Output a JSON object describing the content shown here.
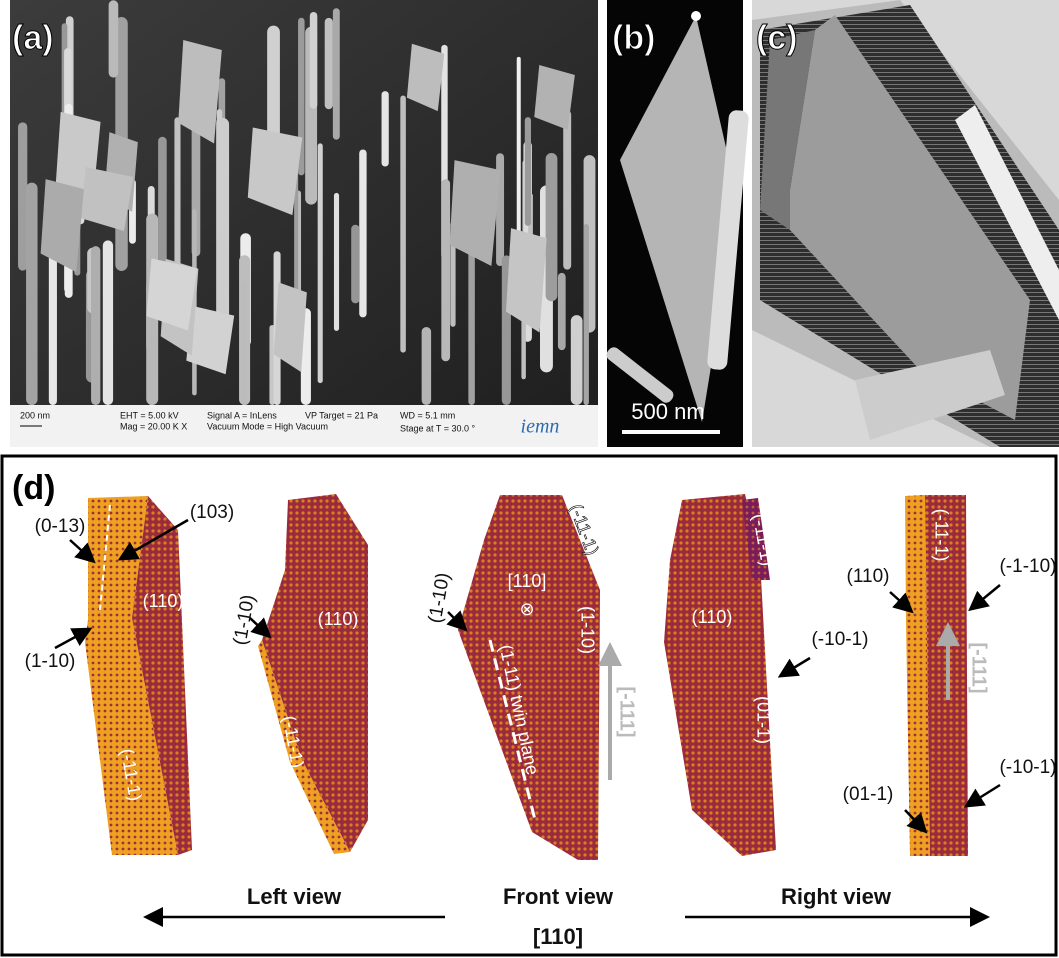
{
  "panels": {
    "a": {
      "label": "(a)",
      "scale_bar": "200 nm",
      "info": [
        "EHT = 5.00 kV",
        "Mag = 20.00 K X",
        "Signal A = InLens",
        "Vacuum Mode = High Vacuum",
        "VP Target = 21 Pa",
        "WD = 5.1 mm",
        "Stage at T = 30.0 °"
      ],
      "logo": "iemn"
    },
    "b": {
      "label": "(b)",
      "scale_bar": "500 nm"
    },
    "c": {
      "label": "(c)"
    },
    "d": {
      "label": "(d)",
      "views": [
        {
          "labels": [
            "(0-13)",
            "(103)",
            "(110)",
            "(1-10)",
            "(-11-1)"
          ]
        },
        {
          "labels": [
            "(1-10)",
            "(110)",
            "(-11-1)"
          ]
        },
        {
          "labels": [
            "(-11-1)",
            "[110]",
            "⊗",
            "(1-10)",
            "(1-11) twin plane",
            "(1-10)",
            "[-111]"
          ]
        },
        {
          "labels": [
            "(-11-1)",
            "(110)",
            "(-10-1)",
            "(01-1)"
          ]
        },
        {
          "labels": [
            "(-11-1)",
            "(110)",
            "(-1-10)",
            "[-111]",
            "(-10-1)",
            "(01-1)"
          ]
        }
      ],
      "captions": {
        "left": "Left view",
        "front": "Front view",
        "front_axis": "[110]",
        "right": "Right view"
      }
    }
  }
}
